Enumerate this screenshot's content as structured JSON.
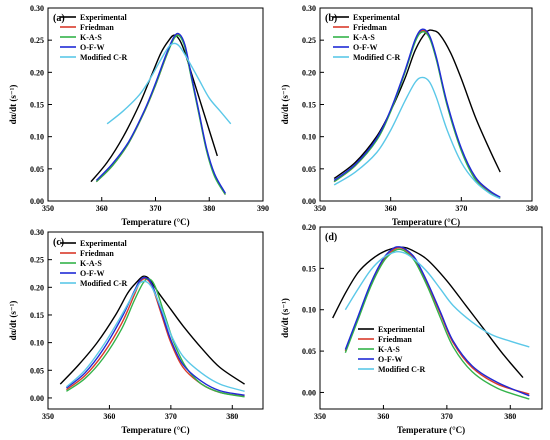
{
  "figure": {
    "series_colors": {
      "Experimental": "#000000",
      "Friedman": "#d93a2b",
      "K-A-S": "#33b34a",
      "O-F-W": "#1f2ad6",
      "Modified C-R": "#5bc8e8"
    }
  },
  "chart_data": [
    {
      "type": "line",
      "panel": "(a)",
      "xlabel": "Temperature (°C)",
      "ylabel": "dα/dt (s⁻¹)",
      "xlim": [
        350,
        390
      ],
      "ylim": [
        0,
        0.3
      ],
      "xticks": [
        "350",
        "360",
        "370",
        "380",
        "390"
      ],
      "yticks": [
        "0.00",
        "0.05",
        "0.10",
        "0.15",
        "0.20",
        "0.25",
        "0.30"
      ],
      "legend_position": "top-left",
      "series": [
        {
          "name": "Experimental",
          "x": [
            358,
            361,
            364,
            367,
            369,
            371,
            372.5,
            373.5,
            374.5,
            375.5,
            377,
            378.5,
            380,
            381.5
          ],
          "y": [
            0.03,
            0.06,
            0.1,
            0.15,
            0.19,
            0.23,
            0.25,
            0.258,
            0.25,
            0.23,
            0.19,
            0.15,
            0.11,
            0.07
          ]
        },
        {
          "name": "Friedman",
          "x": [
            359,
            362,
            365,
            368,
            370,
            372,
            373.5,
            374.5,
            375.5,
            376.5,
            378,
            379.5,
            381,
            383
          ],
          "y": [
            0.03,
            0.055,
            0.09,
            0.14,
            0.18,
            0.225,
            0.255,
            0.258,
            0.24,
            0.2,
            0.14,
            0.08,
            0.04,
            0.01
          ]
        },
        {
          "name": "K-A-S",
          "x": [
            359,
            362,
            365,
            368,
            370,
            372,
            373.5,
            374.5,
            375.5,
            376.5,
            378,
            379.5,
            381,
            383
          ],
          "y": [
            0.03,
            0.055,
            0.09,
            0.14,
            0.18,
            0.225,
            0.253,
            0.256,
            0.238,
            0.198,
            0.138,
            0.078,
            0.038,
            0.01
          ]
        },
        {
          "name": "O-F-W",
          "x": [
            359,
            362,
            365,
            368,
            370,
            372,
            373.5,
            374.5,
            375.5,
            376.5,
            378,
            379.5,
            381,
            383
          ],
          "y": [
            0.032,
            0.058,
            0.092,
            0.142,
            0.183,
            0.228,
            0.256,
            0.259,
            0.242,
            0.202,
            0.142,
            0.082,
            0.042,
            0.012
          ]
        },
        {
          "name": "Modified C-R",
          "x": [
            361,
            364,
            367,
            369,
            371,
            372.5,
            373.5,
            374.5,
            376,
            378,
            380,
            382,
            384
          ],
          "y": [
            0.12,
            0.14,
            0.165,
            0.19,
            0.22,
            0.24,
            0.245,
            0.24,
            0.22,
            0.19,
            0.16,
            0.14,
            0.12
          ]
        }
      ]
    },
    {
      "type": "line",
      "panel": "(b)",
      "xlabel": "Temperature (°C)",
      "ylabel": "dα/dt (s⁻¹)",
      "xlim": [
        350,
        380
      ],
      "ylim": [
        0,
        0.3
      ],
      "xticks": [
        "350",
        "360",
        "370",
        "380"
      ],
      "yticks": [
        "0.00",
        "0.05",
        "0.10",
        "0.15",
        "0.20",
        "0.25",
        "0.30"
      ],
      "legend_position": "top-left",
      "series": [
        {
          "name": "Experimental",
          "x": [
            352,
            355,
            358,
            360,
            362,
            363.5,
            365,
            366,
            367,
            368.5,
            370,
            372,
            374,
            375.5
          ],
          "y": [
            0.035,
            0.06,
            0.1,
            0.14,
            0.19,
            0.235,
            0.262,
            0.265,
            0.258,
            0.23,
            0.19,
            0.13,
            0.08,
            0.045
          ]
        },
        {
          "name": "Friedman",
          "x": [
            352,
            355,
            358,
            360,
            362,
            363.5,
            364.5,
            365.5,
            366.5,
            368,
            370,
            372,
            374,
            375.5
          ],
          "y": [
            0.03,
            0.055,
            0.095,
            0.14,
            0.2,
            0.25,
            0.265,
            0.255,
            0.22,
            0.15,
            0.08,
            0.035,
            0.015,
            0.005
          ]
        },
        {
          "name": "K-A-S",
          "x": [
            352,
            355,
            358,
            360,
            362,
            363.5,
            364.5,
            365.5,
            366.5,
            368,
            370,
            372,
            374,
            375.5
          ],
          "y": [
            0.03,
            0.055,
            0.094,
            0.139,
            0.199,
            0.248,
            0.263,
            0.253,
            0.218,
            0.148,
            0.078,
            0.033,
            0.013,
            0.004
          ]
        },
        {
          "name": "O-F-W",
          "x": [
            352,
            355,
            358,
            360,
            362,
            363.5,
            364.5,
            365.5,
            366.5,
            368,
            370,
            372,
            374,
            375.5
          ],
          "y": [
            0.032,
            0.057,
            0.097,
            0.142,
            0.202,
            0.252,
            0.267,
            0.257,
            0.222,
            0.152,
            0.082,
            0.037,
            0.016,
            0.006
          ]
        },
        {
          "name": "Modified C-R",
          "x": [
            352,
            355,
            358,
            360,
            362,
            363.5,
            364.5,
            365.5,
            366.5,
            368,
            370,
            372,
            374,
            375.5
          ],
          "y": [
            0.025,
            0.045,
            0.075,
            0.11,
            0.155,
            0.185,
            0.192,
            0.185,
            0.16,
            0.11,
            0.06,
            0.03,
            0.012,
            0.004
          ]
        }
      ]
    },
    {
      "type": "line",
      "panel": "(c)",
      "xlabel": "Temperature (°C)",
      "ylabel": "dα/dt (s⁻¹)",
      "xlim": [
        350,
        385
      ],
      "ylim": [
        -0.02,
        0.3
      ],
      "xticks": [
        "350",
        "360",
        "370",
        "380"
      ],
      "yticks": [
        "0.00",
        "0.05",
        "0.10",
        "0.15",
        "0.20",
        "0.25",
        "0.30"
      ],
      "legend_position": "top-left",
      "series": [
        {
          "name": "Experimental",
          "x": [
            352,
            355,
            358,
            361,
            363,
            364.5,
            365.5,
            366.5,
            368,
            370,
            372,
            375,
            378,
            382
          ],
          "y": [
            0.025,
            0.06,
            0.1,
            0.15,
            0.19,
            0.21,
            0.22,
            0.215,
            0.19,
            0.16,
            0.13,
            0.09,
            0.055,
            0.025
          ]
        },
        {
          "name": "Friedman",
          "x": [
            353,
            356,
            359,
            362,
            364,
            365,
            366,
            367,
            368.5,
            370,
            372,
            375,
            378,
            382
          ],
          "y": [
            0.015,
            0.04,
            0.08,
            0.135,
            0.185,
            0.21,
            0.215,
            0.2,
            0.15,
            0.1,
            0.055,
            0.025,
            0.01,
            0.003
          ]
        },
        {
          "name": "K-A-S",
          "x": [
            353,
            356,
            359,
            362,
            364,
            365.5,
            366.5,
            367.5,
            369,
            370.5,
            372.5,
            375,
            378,
            382
          ],
          "y": [
            0.012,
            0.035,
            0.072,
            0.125,
            0.175,
            0.208,
            0.215,
            0.2,
            0.15,
            0.1,
            0.055,
            0.025,
            0.01,
            0.002
          ]
        },
        {
          "name": "O-F-W",
          "x": [
            353,
            356,
            359,
            362,
            364,
            365,
            366,
            367,
            368.5,
            370,
            372,
            375,
            378,
            382
          ],
          "y": [
            0.018,
            0.045,
            0.088,
            0.145,
            0.192,
            0.213,
            0.217,
            0.203,
            0.155,
            0.105,
            0.06,
            0.03,
            0.013,
            0.005
          ]
        },
        {
          "name": "Modified C-R",
          "x": [
            353,
            356,
            359,
            362,
            364,
            365,
            366,
            367,
            368.5,
            370,
            372,
            375,
            378,
            382
          ],
          "y": [
            0.02,
            0.05,
            0.095,
            0.15,
            0.19,
            0.208,
            0.21,
            0.198,
            0.16,
            0.115,
            0.075,
            0.045,
            0.025,
            0.012
          ]
        }
      ]
    },
    {
      "type": "line",
      "panel": "(d)",
      "xlabel": "Temperature (°C)",
      "ylabel": "dα/dt (s⁻¹)",
      "xlim": [
        350,
        385
      ],
      "ylim": [
        -0.02,
        0.2
      ],
      "xticks": [
        "350",
        "360",
        "370",
        "380"
      ],
      "yticks": [
        "0.00",
        "0.05",
        "0.10",
        "0.15",
        "0.20"
      ],
      "legend_position": "bottom-right",
      "series": [
        {
          "name": "Experimental",
          "x": [
            352,
            354,
            356,
            358,
            360,
            362,
            363.5,
            365,
            367,
            370,
            373,
            376,
            379,
            382
          ],
          "y": [
            0.09,
            0.12,
            0.145,
            0.16,
            0.17,
            0.175,
            0.175,
            0.17,
            0.16,
            0.135,
            0.105,
            0.075,
            0.045,
            0.018
          ]
        },
        {
          "name": "Friedman",
          "x": [
            354,
            356,
            358,
            360,
            361.5,
            362.5,
            363.5,
            365,
            367,
            369,
            371,
            374,
            378,
            383
          ],
          "y": [
            0.05,
            0.09,
            0.13,
            0.16,
            0.172,
            0.175,
            0.172,
            0.16,
            0.13,
            0.095,
            0.06,
            0.03,
            0.01,
            -0.002
          ]
        },
        {
          "name": "K-A-S",
          "x": [
            354,
            356,
            358,
            360,
            361.5,
            362.5,
            363.5,
            365,
            367,
            369,
            371,
            374,
            378,
            383
          ],
          "y": [
            0.048,
            0.088,
            0.128,
            0.158,
            0.17,
            0.173,
            0.17,
            0.158,
            0.127,
            0.09,
            0.055,
            0.025,
            0.005,
            -0.008
          ]
        },
        {
          "name": "O-F-W",
          "x": [
            354,
            356,
            358,
            360,
            361.5,
            362.5,
            363.5,
            365,
            367,
            369,
            371,
            374,
            378,
            383
          ],
          "y": [
            0.052,
            0.092,
            0.132,
            0.162,
            0.174,
            0.176,
            0.173,
            0.162,
            0.132,
            0.097,
            0.062,
            0.032,
            0.012,
            -0.004
          ]
        },
        {
          "name": "Modified C-R",
          "x": [
            354,
            356,
            358,
            360,
            362,
            363.5,
            365,
            367,
            369,
            371,
            374,
            377,
            380,
            383
          ],
          "y": [
            0.1,
            0.125,
            0.148,
            0.163,
            0.17,
            0.168,
            0.16,
            0.145,
            0.125,
            0.105,
            0.085,
            0.07,
            0.062,
            0.055
          ]
        }
      ]
    }
  ]
}
